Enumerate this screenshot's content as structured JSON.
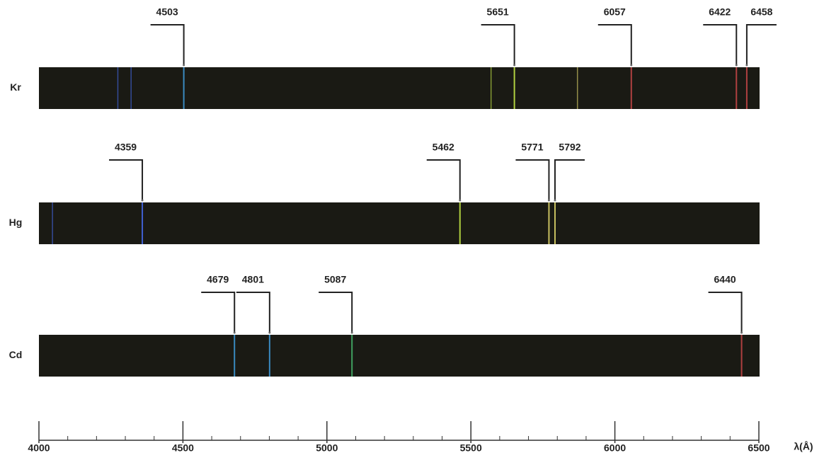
{
  "chart_data": {
    "type": "spectrum",
    "spectra": [
      {
        "name": "Kr",
        "lines": [
          4503,
          5651,
          6057,
          6422,
          6458
        ],
        "faint_lines": [
          4274,
          4320,
          5570,
          5870
        ]
      },
      {
        "name": "Hg",
        "lines": [
          4359,
          5462,
          5771,
          5792
        ],
        "faint_lines": [
          4047
        ]
      },
      {
        "name": "Cd",
        "lines": [
          4679,
          4801,
          5087,
          6440
        ],
        "faint_lines": []
      }
    ],
    "xlim": [
      4000,
      6500
    ],
    "xticks": [
      4000,
      4500,
      5000,
      5500,
      6000,
      6500
    ],
    "minor_xticks": [
      4100,
      4200,
      4300,
      4400,
      4600,
      4700,
      4800,
      4900,
      5100,
      5200,
      5300,
      5400,
      5600,
      5700,
      5800,
      5900,
      6100,
      6200,
      6300,
      6400
    ],
    "xlabel": "λ(Å)",
    "strip_color": "#1a1a14"
  }
}
